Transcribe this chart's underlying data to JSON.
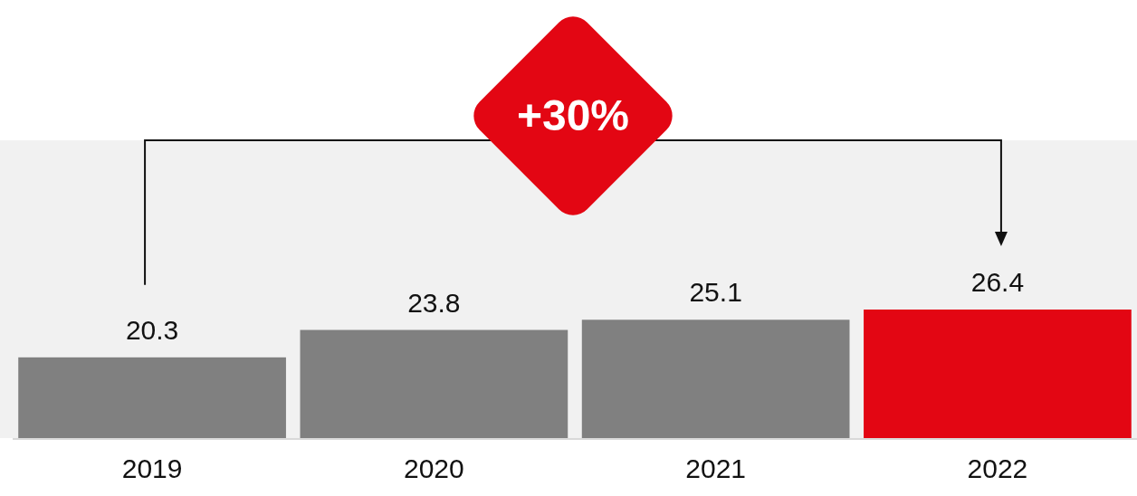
{
  "chart_data": {
    "type": "bar",
    "categories": [
      "2019",
      "2020",
      "2021",
      "2022"
    ],
    "values": [
      20.3,
      23.8,
      25.1,
      26.4
    ],
    "colors": [
      "#808080",
      "#808080",
      "#808080",
      "#e30613"
    ],
    "ylim": [
      10,
      48
    ],
    "data_labels": true,
    "tick_labels": "x",
    "annotations": [
      "+30%"
    ]
  }
}
